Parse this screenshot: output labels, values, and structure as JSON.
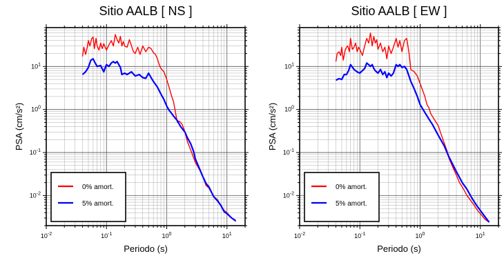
{
  "chart_data": [
    {
      "type": "line",
      "title": "Sitio AALB [ NS ]",
      "xlabel": "Periodo (s)",
      "ylabel": "PSA (cm/s²)",
      "xscale": "log",
      "yscale": "log",
      "xlim": [
        0.01,
        20
      ],
      "ylim": [
        0.002,
        80
      ],
      "grid": true,
      "legend_position": "bottom-left",
      "x_ticks": [
        {
          "value": 0.01,
          "base": "10",
          "exp": "-2"
        },
        {
          "value": 0.1,
          "base": "10",
          "exp": "-1"
        },
        {
          "value": 1,
          "base": "10",
          "exp": "0"
        },
        {
          "value": 10,
          "base": "10",
          "exp": "1"
        }
      ],
      "y_ticks": [
        {
          "value": 0.01,
          "base": "10",
          "exp": "-2"
        },
        {
          "value": 0.1,
          "base": "10",
          "exp": "-1"
        },
        {
          "value": 1,
          "base": "10",
          "exp": "0"
        },
        {
          "value": 10,
          "base": "10",
          "exp": "1"
        }
      ],
      "series": [
        {
          "name": "0% amort.",
          "color": "#ff0000",
          "x": [
            0.04,
            0.042,
            0.045,
            0.048,
            0.05,
            0.053,
            0.057,
            0.06,
            0.063,
            0.067,
            0.07,
            0.075,
            0.08,
            0.085,
            0.09,
            0.095,
            0.1,
            0.11,
            0.12,
            0.13,
            0.14,
            0.15,
            0.16,
            0.17,
            0.18,
            0.19,
            0.2,
            0.22,
            0.24,
            0.26,
            0.28,
            0.3,
            0.33,
            0.36,
            0.4,
            0.45,
            0.5,
            0.55,
            0.6,
            0.65,
            0.7,
            0.75,
            0.8,
            0.9,
            1.0,
            1.1,
            1.2,
            1.3,
            1.4,
            1.5,
            1.6,
            1.7,
            1.8,
            2.0,
            2.2,
            2.5,
            2.8,
            3.0,
            3.5,
            4.0,
            4.5,
            5.0,
            6.0,
            7.0,
            8.0,
            9.0,
            10,
            12,
            14
          ],
          "y": [
            17,
            28,
            19,
            28,
            40,
            30,
            45,
            48,
            26,
            45,
            30,
            24,
            35,
            26,
            34,
            28,
            24,
            32,
            40,
            30,
            55,
            42,
            35,
            50,
            30,
            38,
            30,
            28,
            42,
            30,
            22,
            20,
            28,
            19,
            30,
            22,
            28,
            26,
            21,
            19,
            15,
            11,
            9.0,
            7.5,
            5.0,
            3.2,
            2.1,
            1.5,
            0.85,
            0.5,
            0.54,
            0.5,
            0.45,
            0.3,
            0.18,
            0.115,
            0.075,
            0.058,
            0.04,
            0.027,
            0.017,
            0.015,
            0.0095,
            0.008,
            0.0055,
            0.0045,
            0.004,
            0.003,
            0.0025
          ]
        },
        {
          "name": "5% amort.",
          "color": "#0000ff",
          "x": [
            0.04,
            0.045,
            0.05,
            0.055,
            0.06,
            0.065,
            0.07,
            0.08,
            0.09,
            0.1,
            0.11,
            0.12,
            0.13,
            0.14,
            0.15,
            0.16,
            0.17,
            0.18,
            0.2,
            0.22,
            0.24,
            0.26,
            0.3,
            0.35,
            0.4,
            0.45,
            0.5,
            0.55,
            0.6,
            0.7,
            0.8,
            0.9,
            1.0,
            1.1,
            1.2,
            1.3,
            1.5,
            1.7,
            2.0,
            2.2,
            2.5,
            2.8,
            3.0,
            3.5,
            4.0,
            4.5,
            5.0,
            6.0,
            7.0,
            8.0,
            9.0,
            10,
            12,
            14
          ],
          "y": [
            6.5,
            7.5,
            9.5,
            14,
            15,
            12,
            10,
            10.5,
            7.5,
            11,
            10,
            12,
            13,
            12,
            13,
            11,
            9.5,
            6.5,
            7.0,
            6.5,
            7.0,
            7.5,
            6.0,
            6.5,
            5.5,
            5.3,
            7.0,
            5.5,
            4.5,
            3.3,
            2.3,
            1.7,
            1.2,
            0.95,
            0.82,
            0.7,
            0.55,
            0.4,
            0.3,
            0.22,
            0.16,
            0.105,
            0.07,
            0.042,
            0.027,
            0.019,
            0.016,
            0.0095,
            0.0075,
            0.0058,
            0.0042,
            0.0038,
            0.003,
            0.0026
          ]
        }
      ]
    },
    {
      "type": "line",
      "title": "Sitio AALB [ EW ]",
      "xlabel": "Periodo (s)",
      "ylabel": "PSA (cm/s²)",
      "xscale": "log",
      "yscale": "log",
      "xlim": [
        0.01,
        20
      ],
      "ylim": [
        0.002,
        80
      ],
      "grid": true,
      "legend_position": "bottom-left",
      "x_ticks": [
        {
          "value": 0.01,
          "base": "10",
          "exp": "-2"
        },
        {
          "value": 0.1,
          "base": "10",
          "exp": "-1"
        },
        {
          "value": 1,
          "base": "10",
          "exp": "0"
        },
        {
          "value": 10,
          "base": "10",
          "exp": "1"
        }
      ],
      "y_ticks": [
        {
          "value": 0.01,
          "base": "10",
          "exp": "-2"
        },
        {
          "value": 0.1,
          "base": "10",
          "exp": "-1"
        },
        {
          "value": 1,
          "base": "10",
          "exp": "0"
        },
        {
          "value": 10,
          "base": "10",
          "exp": "1"
        }
      ],
      "series": [
        {
          "name": "0% amort.",
          "color": "#ff0000",
          "x": [
            0.04,
            0.042,
            0.045,
            0.048,
            0.05,
            0.053,
            0.057,
            0.06,
            0.063,
            0.067,
            0.07,
            0.075,
            0.08,
            0.085,
            0.09,
            0.095,
            0.1,
            0.11,
            0.12,
            0.13,
            0.14,
            0.15,
            0.16,
            0.17,
            0.18,
            0.19,
            0.2,
            0.22,
            0.24,
            0.26,
            0.28,
            0.3,
            0.33,
            0.36,
            0.4,
            0.43,
            0.46,
            0.5,
            0.55,
            0.6,
            0.65,
            0.7,
            0.75,
            0.8,
            0.9,
            1.0,
            1.1,
            1.2,
            1.3,
            1.4,
            1.5,
            1.7,
            2.0,
            2.2,
            2.5,
            2.8,
            3.0,
            3.5,
            4.0,
            4.5,
            5.0,
            6.0,
            7.0,
            8.0,
            9.0,
            10,
            12,
            14
          ],
          "y": [
            13,
            20,
            22,
            18,
            28,
            14,
            24,
            28,
            30,
            22,
            45,
            25,
            28,
            35,
            22,
            28,
            25,
            18,
            30,
            45,
            35,
            60,
            30,
            50,
            35,
            42,
            25,
            35,
            22,
            28,
            15,
            30,
            20,
            28,
            45,
            28,
            40,
            22,
            40,
            45,
            22,
            8.5,
            8.0,
            7.5,
            6.0,
            4.0,
            2.8,
            2.0,
            1.3,
            1.1,
            0.8,
            0.6,
            0.42,
            0.28,
            0.17,
            0.11,
            0.075,
            0.045,
            0.03,
            0.02,
            0.016,
            0.01,
            0.0075,
            0.0058,
            0.0045,
            0.0038,
            0.0028,
            0.0024
          ]
        },
        {
          "name": "5% amort.",
          "color": "#0000ff",
          "x": [
            0.04,
            0.045,
            0.05,
            0.055,
            0.06,
            0.065,
            0.07,
            0.08,
            0.09,
            0.1,
            0.11,
            0.12,
            0.13,
            0.14,
            0.15,
            0.16,
            0.17,
            0.18,
            0.2,
            0.22,
            0.24,
            0.26,
            0.28,
            0.3,
            0.33,
            0.36,
            0.4,
            0.43,
            0.46,
            0.5,
            0.55,
            0.6,
            0.7,
            0.8,
            0.9,
            1.0,
            1.2,
            1.4,
            1.6,
            2.0,
            2.5,
            3.0,
            3.5,
            4.0,
            5.0,
            6.0,
            7.0,
            8.0,
            9.0,
            10,
            12,
            14
          ],
          "y": [
            4.8,
            5.2,
            5.0,
            6.5,
            6.5,
            8.0,
            11,
            8.5,
            7.5,
            7.0,
            8.0,
            9.0,
            12,
            11,
            10,
            11,
            9.0,
            8.0,
            7.0,
            8.5,
            6.5,
            7.5,
            5.5,
            7.0,
            6.0,
            7.0,
            11,
            10,
            11,
            9.5,
            10,
            8.5,
            4.5,
            3.0,
            2.0,
            1.3,
            0.85,
            0.6,
            0.45,
            0.25,
            0.145,
            0.08,
            0.052,
            0.036,
            0.02,
            0.014,
            0.0095,
            0.007,
            0.0055,
            0.0045,
            0.0032,
            0.0024
          ]
        }
      ]
    }
  ]
}
